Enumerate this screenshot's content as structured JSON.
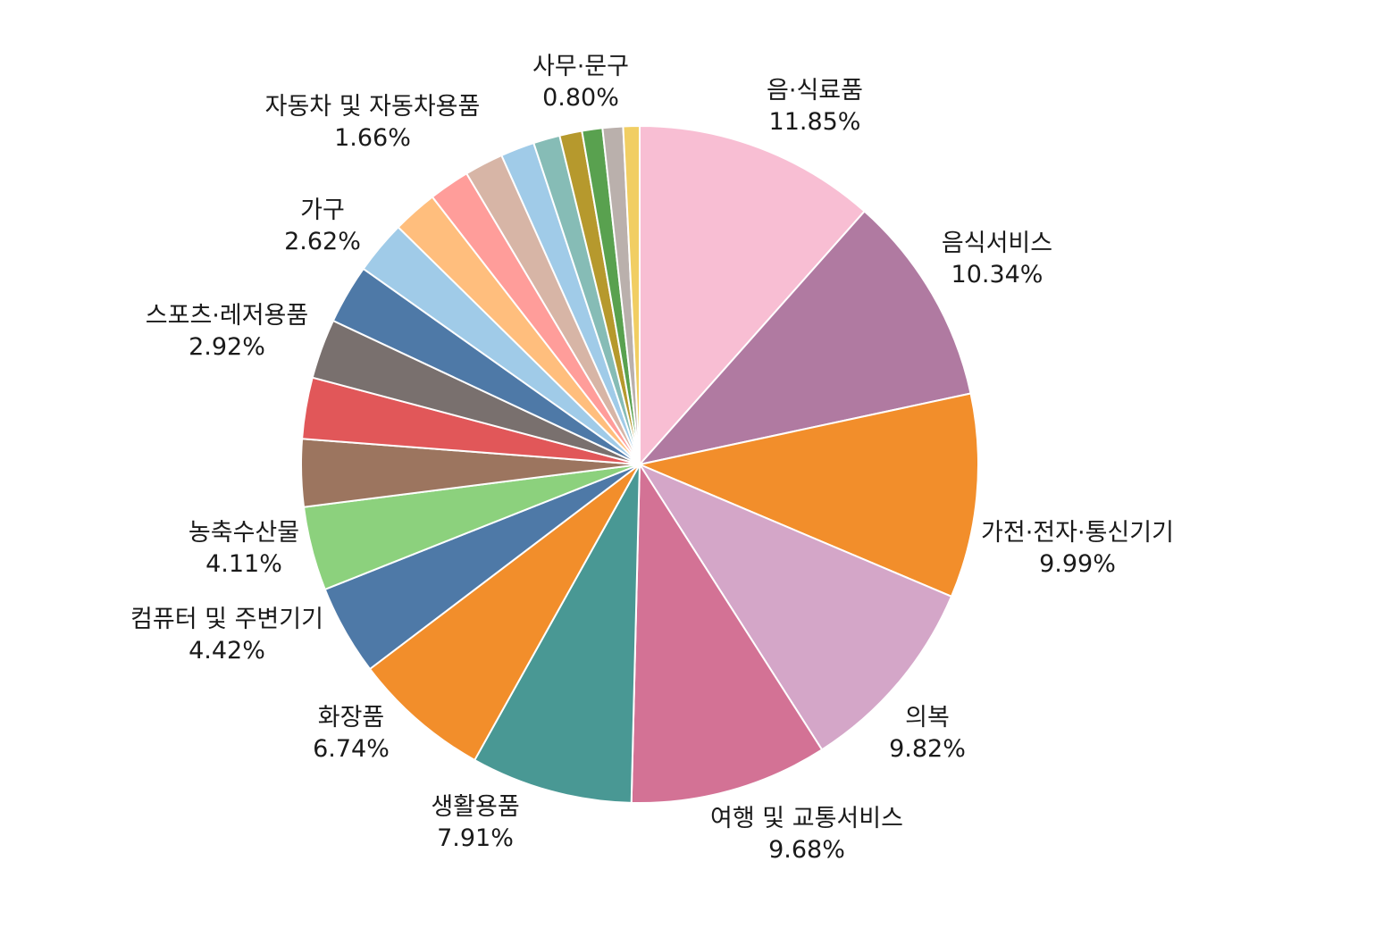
{
  "chart_data": {
    "type": "pie",
    "title": "",
    "slices": [
      {
        "label": "음·식료품",
        "value": 11.85,
        "display": "11.85%",
        "color": "#F8BED3",
        "labeled": true
      },
      {
        "label": "음식서비스",
        "value": 10.34,
        "display": "10.34%",
        "color": "#B07AA1",
        "labeled": true
      },
      {
        "label": "가전·전자·통신기기",
        "value": 9.99,
        "display": "9.99%",
        "color": "#F28E2B",
        "labeled": true
      },
      {
        "label": "의복",
        "value": 9.82,
        "display": "9.82%",
        "color": "#D4A6C8",
        "labeled": true
      },
      {
        "label": "여행 및 교통서비스",
        "value": 9.68,
        "display": "9.68%",
        "color": "#D37295",
        "labeled": true
      },
      {
        "label": "생활용품",
        "value": 7.91,
        "display": "7.91%",
        "color": "#499894",
        "labeled": true
      },
      {
        "label": "화장품",
        "value": 6.74,
        "display": "6.74%",
        "color": "#F28E2B",
        "labeled": true
      },
      {
        "label": "컴퓨터 및 주변기기",
        "value": 4.42,
        "display": "4.42%",
        "color": "#4E79A7",
        "labeled": true
      },
      {
        "label": "농축수산물",
        "value": 4.11,
        "display": "4.11%",
        "color": "#8CD17D",
        "labeled": true
      },
      {
        "label": "",
        "value": 3.3,
        "color": "#9C755F",
        "labeled": false
      },
      {
        "label": "",
        "value": 3.0,
        "color": "#E15759",
        "labeled": false
      },
      {
        "label": "스포츠·레저용품",
        "value": 2.92,
        "display": "2.92%",
        "color": "#79706E",
        "labeled": true
      },
      {
        "label": "",
        "value": 2.9,
        "color": "#4E79A7",
        "labeled": false
      },
      {
        "label": "가구",
        "value": 2.62,
        "display": "2.62%",
        "color": "#A0CBE8",
        "labeled": true
      },
      {
        "label": "",
        "value": 2.2,
        "color": "#FFBE7D",
        "labeled": false
      },
      {
        "label": "",
        "value": 2.0,
        "color": "#FF9D9A",
        "labeled": false
      },
      {
        "label": "",
        "value": 1.9,
        "color": "#D7B5A6",
        "labeled": false
      },
      {
        "label": "자동차 및 자동차용품",
        "value": 1.66,
        "display": "1.66%",
        "color": "#A0CBE8",
        "labeled": true
      },
      {
        "label": "",
        "value": 1.3,
        "color": "#86BCB6",
        "labeled": false
      },
      {
        "label": "",
        "value": 1.1,
        "color": "#B6992D",
        "labeled": false
      },
      {
        "label": "",
        "value": 1.0,
        "color": "#59A14F",
        "labeled": false
      },
      {
        "label": "",
        "value": 1.0,
        "color": "#BAB0AC",
        "labeled": false
      },
      {
        "label": "사무·문구",
        "value": 0.8,
        "display": "0.80%",
        "color": "#F1CE63",
        "labeled": true
      }
    ],
    "start_angle_deg": 0,
    "direction": "clockwise",
    "legend": "none"
  }
}
